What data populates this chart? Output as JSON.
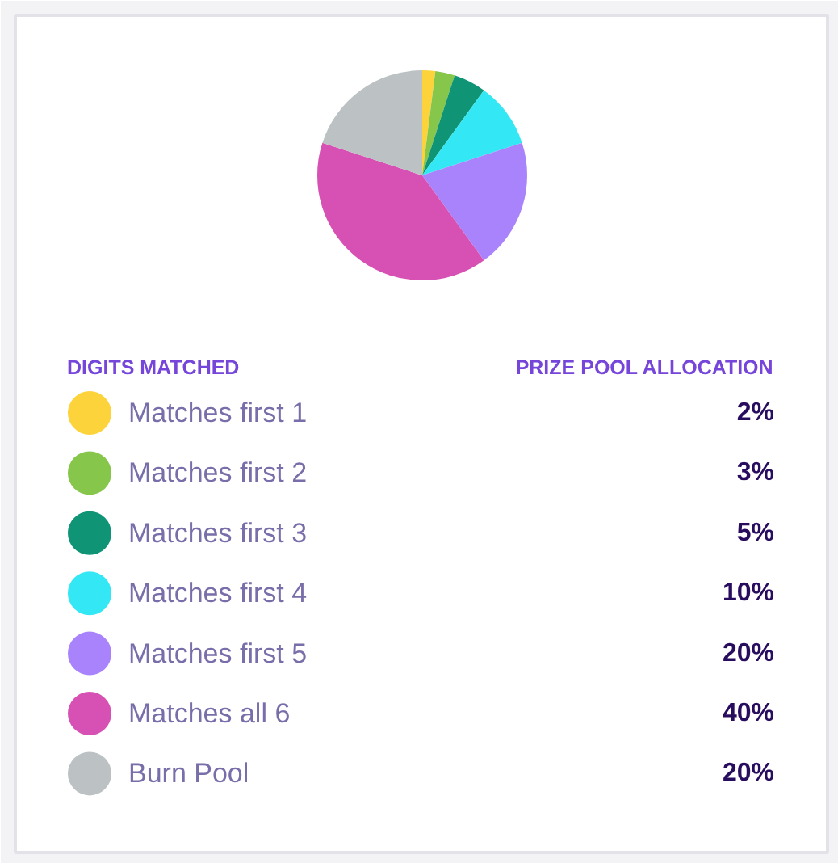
{
  "chart_data": {
    "type": "pie",
    "categories": [
      "Matches first 1",
      "Matches first 2",
      "Matches first 3",
      "Matches first 4",
      "Matches first 5",
      "Matches all 6",
      "Burn Pool"
    ],
    "values": [
      2,
      3,
      5,
      10,
      20,
      40,
      20
    ],
    "colors": [
      "#fdd33c",
      "#86c64b",
      "#0f9476",
      "#33e8f4",
      "#a983fb",
      "#d651b3",
      "#bcc1c3"
    ],
    "value_labels": [
      "2%",
      "3%",
      "5%",
      "10%",
      "20%",
      "40%",
      "20%"
    ],
    "legend_title": "DIGITS MATCHED",
    "annotations": [
      "PRIZE POOL ALLOCATION"
    ],
    "legend": "bottom"
  }
}
